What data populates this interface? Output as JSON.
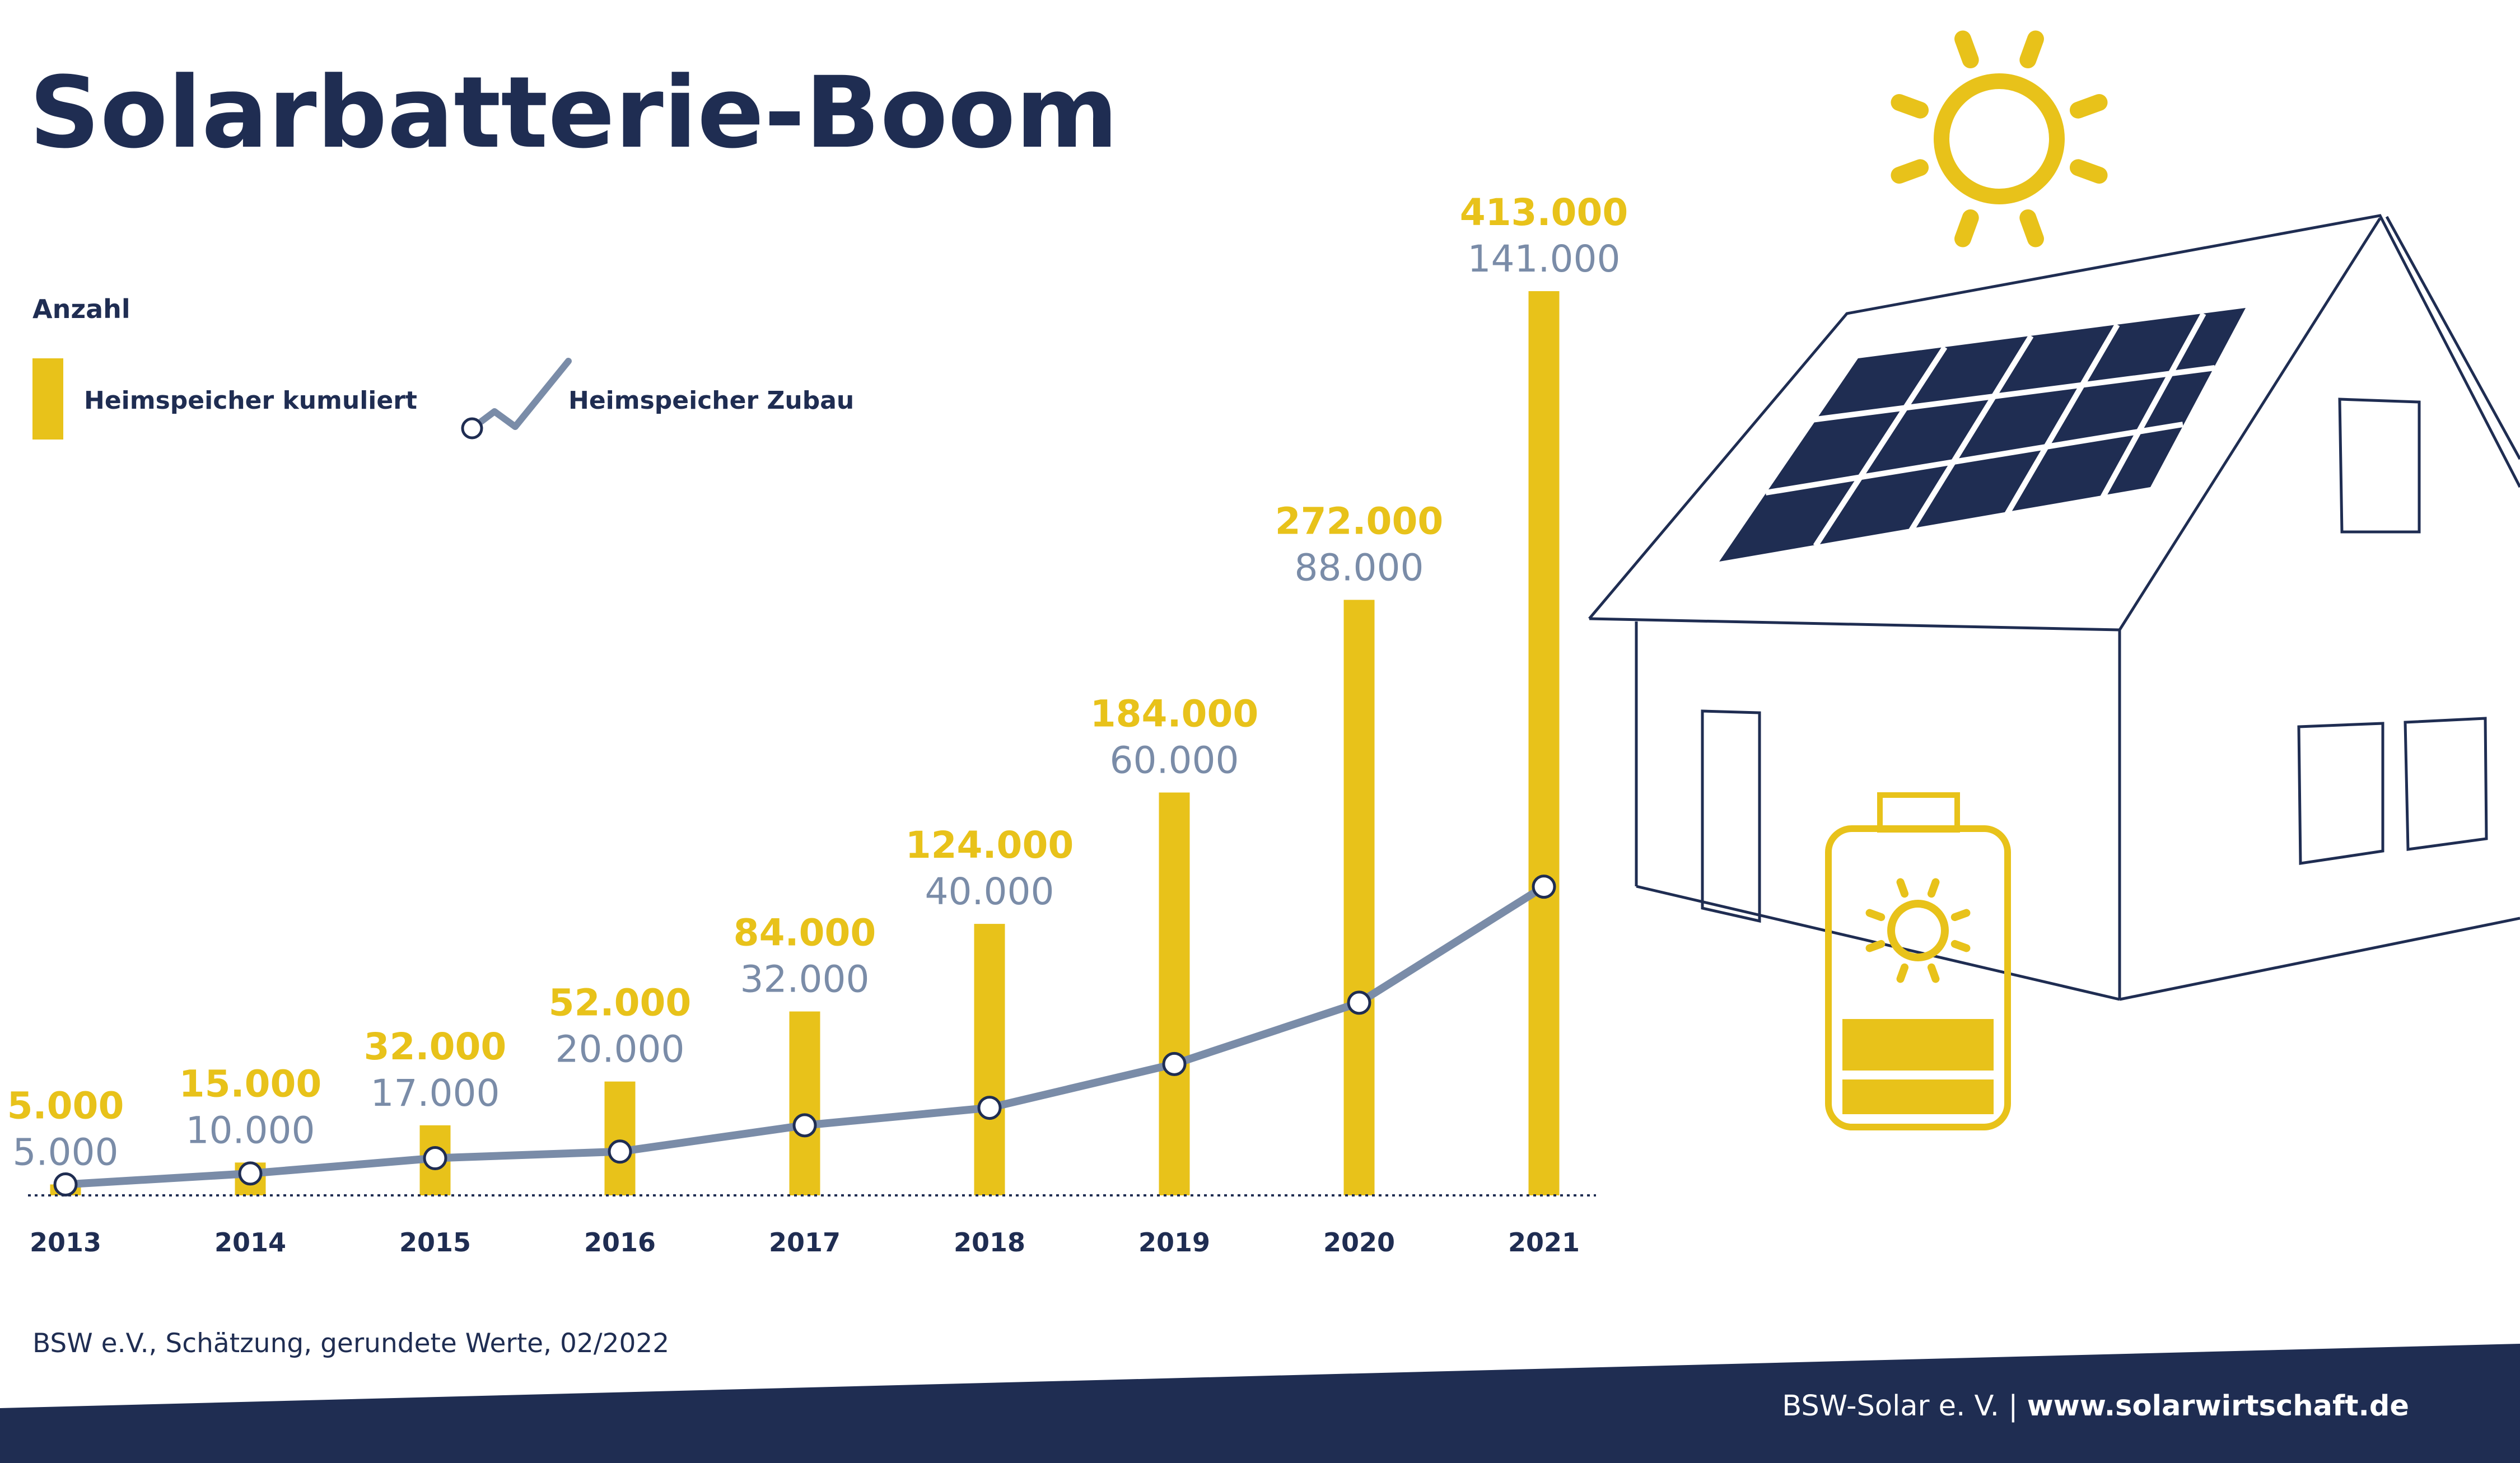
{
  "colors": {
    "navy": "#1f2d52",
    "yellow": "#e8c21a",
    "slate": "#7a8ca8",
    "white": "#ffffff"
  },
  "title": "Solarbatterie-Boom",
  "unit_label": "Anzahl",
  "source_note": "BSW e.V., Schätzung, gerundete Werte, 02/2022",
  "footer": {
    "org": "BSW-Solar e. V. |",
    "url": "www.solarwirtschaft.de"
  },
  "icons": [
    "sun-icon",
    "house-icon",
    "solar-panel-icon",
    "battery-icon"
  ],
  "chart_data": {
    "type": "bar",
    "categories": [
      "2013",
      "2014",
      "2015",
      "2016",
      "2017",
      "2018",
      "2019",
      "2020",
      "2021"
    ],
    "series": [
      {
        "name": "Heimspeicher kumuliert",
        "type": "bar",
        "color": "#e8c21a",
        "values": [
          5000,
          15000,
          32000,
          52000,
          84000,
          124000,
          184000,
          272000,
          413000
        ],
        "labels": [
          "5.000",
          "15.000",
          "32.000",
          "52.000",
          "84.000",
          "124.000",
          "184.000",
          "272.000",
          "413.000"
        ]
      },
      {
        "name": "Heimspeicher Zubau",
        "type": "line",
        "color": "#7a8ca8",
        "values": [
          5000,
          10000,
          17000,
          20000,
          32000,
          40000,
          60000,
          88000,
          141000
        ],
        "labels": [
          "5.000",
          "10.000",
          "17.000",
          "20.000",
          "32.000",
          "40.000",
          "60.000",
          "88.000",
          "141.000"
        ]
      }
    ],
    "ylim": [
      0,
      413000
    ],
    "grid": false,
    "legend_position": "top-left"
  }
}
